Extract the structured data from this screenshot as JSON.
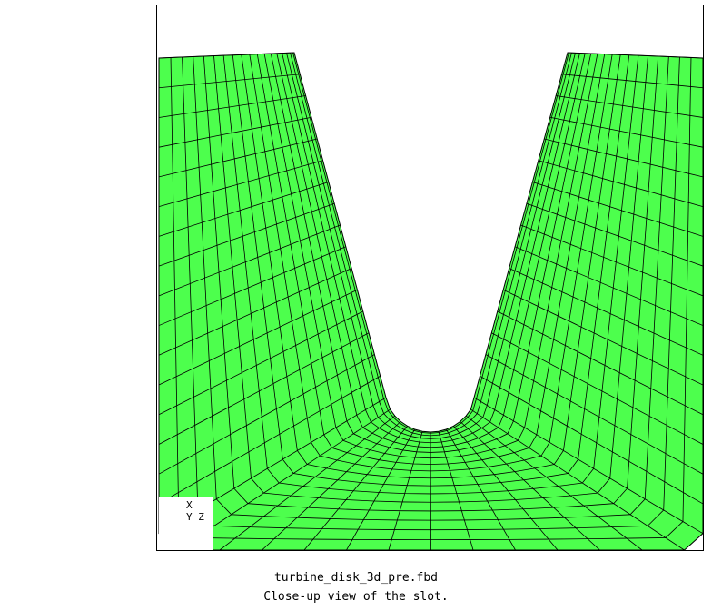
{
  "colors": {
    "mesh_fill": "#4dff4d",
    "mesh_lines": "#000000",
    "background": "#ffffff"
  },
  "triad": {
    "x_label": "X",
    "yz_label": "Y Z"
  },
  "caption": {
    "file": "turbine_disk_3d_pre.fbd",
    "description": "Close-up view of the slot."
  }
}
